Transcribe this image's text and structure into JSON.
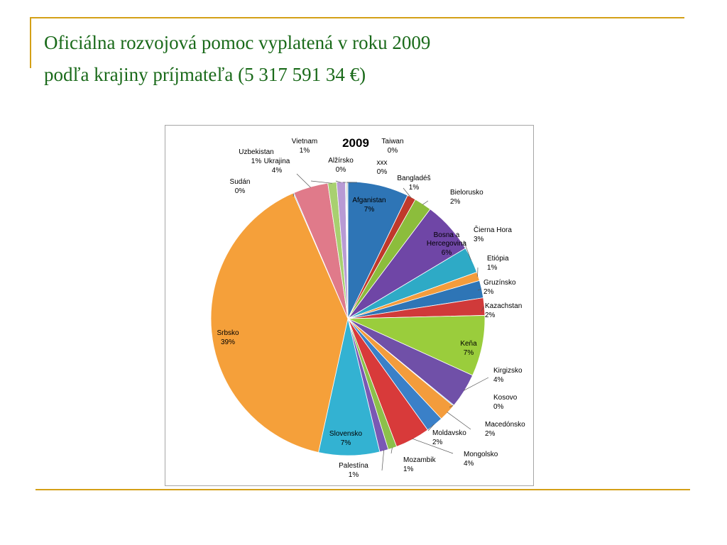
{
  "slide": {
    "title_line1": "Oficiálna rozvojová pomoc vyplatená v roku 2009",
    "title_line2": "podľa krajiny príjmateľa (5 317 591 34 €)",
    "accent_color": "#d4a017",
    "title_color": "#1a6a1a"
  },
  "chart_data": {
    "type": "pie",
    "title": "2009",
    "slices": [
      {
        "label": "Afganistan",
        "percent": 7,
        "display": "7%",
        "color": "#2e75b6"
      },
      {
        "label": "Bangladéš",
        "percent": 1,
        "display": "1%",
        "color": "#c0392b"
      },
      {
        "label": "Bielorusko",
        "percent": 2,
        "display": "2%",
        "color": "#8cbd3c"
      },
      {
        "label": "Bosna a Hercegovina",
        "percent": 6,
        "display": "6%",
        "color": "#6f46a6"
      },
      {
        "label": "Čierna Hora",
        "percent": 3,
        "display": "3%",
        "color": "#2eaac6"
      },
      {
        "label": "Etiópia",
        "percent": 1,
        "display": "1%",
        "color": "#f39c3c"
      },
      {
        "label": "Gruzínsko",
        "percent": 2,
        "display": "2%",
        "color": "#2e75b6"
      },
      {
        "label": "Kazachstan",
        "percent": 2,
        "display": "2%",
        "color": "#d03a3a"
      },
      {
        "label": "Keňa",
        "percent": 7,
        "display": "7%",
        "color": "#9acd3c"
      },
      {
        "label": "Kirgizsko",
        "percent": 4,
        "display": "4%",
        "color": "#7050a8"
      },
      {
        "label": "Kosovo",
        "percent": 0,
        "display": "0%",
        "color": "#3aaed0"
      },
      {
        "label": "Macedónsko",
        "percent": 2,
        "display": "2%",
        "color": "#f39c3c"
      },
      {
        "label": "Moldavsko",
        "percent": 2,
        "display": "2%",
        "color": "#3a80c8"
      },
      {
        "label": "Mongolsko",
        "percent": 4,
        "display": "4%",
        "color": "#d83a3a"
      },
      {
        "label": "Mozambik",
        "percent": 1,
        "display": "1%",
        "color": "#8cc04a"
      },
      {
        "label": "Palestína",
        "percent": 1,
        "display": "1%",
        "color": "#7a58b4"
      },
      {
        "label": "Slovensko",
        "percent": 7,
        "display": "7%",
        "color": "#33b2d2"
      },
      {
        "label": "Srbsko",
        "percent": 39,
        "display": "39%",
        "color": "#f5a03a"
      },
      {
        "label": "Sudán",
        "percent": 0,
        "display": "0%",
        "color": "#4a8ad0"
      },
      {
        "label": "Ukrajina",
        "percent": 4,
        "display": "4%",
        "color": "#e07a8a"
      },
      {
        "label": "Uzbekistan",
        "percent": 1,
        "display": "1%",
        "color": "#a8d070"
      },
      {
        "label": "Vietnam",
        "percent": 1,
        "display": "1%",
        "color": "#b89ad4"
      },
      {
        "label": "Alžírsko",
        "percent": 0,
        "display": "0%",
        "color": "#5ab8d8"
      },
      {
        "label": "xxx",
        "percent": 0,
        "display": "0%",
        "color": "#f5b060"
      },
      {
        "label": "Taiwan",
        "percent": 0,
        "display": "0%",
        "color": "#6a9ad8"
      }
    ]
  }
}
